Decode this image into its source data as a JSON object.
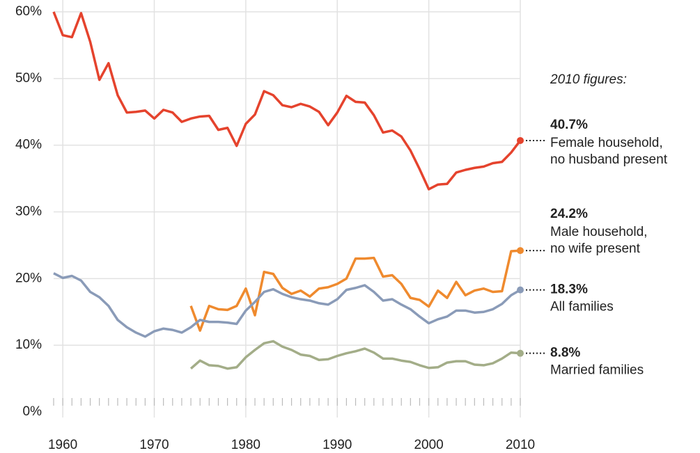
{
  "chart_data": {
    "type": "line",
    "annotation": "2010 figures:",
    "x": [
      1959,
      1960,
      1961,
      1962,
      1963,
      1964,
      1965,
      1966,
      1967,
      1968,
      1969,
      1970,
      1971,
      1972,
      1973,
      1974,
      1975,
      1976,
      1977,
      1978,
      1979,
      1980,
      1981,
      1982,
      1983,
      1984,
      1985,
      1986,
      1987,
      1988,
      1989,
      1990,
      1991,
      1992,
      1993,
      1994,
      1995,
      1996,
      1997,
      1998,
      1999,
      2000,
      2001,
      2002,
      2003,
      2004,
      2005,
      2006,
      2007,
      2008,
      2009,
      2010
    ],
    "xlim": [
      1959,
      2010
    ],
    "xticks": [
      1960,
      1970,
      1980,
      1990,
      2000,
      2010
    ],
    "ylim": [
      0,
      60
    ],
    "yticks": [
      {
        "value": 0,
        "label": "0%"
      },
      {
        "value": 10,
        "label": "10%"
      },
      {
        "value": 20,
        "label": "20%"
      },
      {
        "value": 30,
        "label": "30%"
      },
      {
        "value": 40,
        "label": "40%"
      },
      {
        "value": 50,
        "label": "50%"
      },
      {
        "value": 60,
        "label": "60%"
      }
    ],
    "grid": true,
    "series": [
      {
        "name": "Female household, no husband present",
        "color": "#e5432d",
        "values": [
          60,
          56.5,
          56.2,
          59.8,
          55.5,
          49.8,
          52.3,
          47.5,
          44.9,
          45.0,
          45.2,
          44.0,
          45.3,
          44.9,
          43.5,
          44.0,
          44.3,
          44.4,
          42.3,
          42.6,
          39.9,
          43.2,
          44.6,
          48.1,
          47.5,
          46.0,
          45.7,
          46.2,
          45.8,
          45.0,
          43.0,
          44.9,
          47.4,
          46.5,
          46.4,
          44.5,
          41.9,
          42.2,
          41.3,
          39.2,
          36.4,
          33.4,
          34.1,
          34.2,
          35.9,
          36.3,
          36.6,
          36.8,
          37.3,
          37.5,
          38.9,
          40.7
        ],
        "value_labels": [
          null,
          null,
          null,
          null,
          null,
          null,
          null,
          null,
          null,
          null,
          null,
          null,
          null,
          null,
          null,
          null,
          null,
          null,
          null,
          null,
          null,
          null,
          null,
          null,
          null,
          null,
          null,
          null,
          null,
          null,
          null,
          null,
          null,
          null,
          null,
          null,
          null,
          null,
          null,
          null,
          null,
          null,
          null,
          null,
          null,
          null,
          null,
          null,
          null,
          null,
          null,
          "40.7%"
        ]
      },
      {
        "name": "Male household, no wife present",
        "color": "#ef8a2e",
        "values": [
          null,
          null,
          null,
          null,
          null,
          null,
          null,
          null,
          null,
          null,
          null,
          null,
          null,
          null,
          null,
          15.9,
          12.2,
          15.9,
          15.4,
          15.3,
          15.9,
          18.5,
          14.5,
          21.0,
          20.7,
          18.6,
          17.7,
          18.2,
          17.3,
          18.5,
          18.7,
          19.2,
          20.0,
          23.0,
          23.0,
          23.1,
          20.3,
          20.5,
          19.2,
          17.1,
          16.8,
          15.8,
          18.2,
          17.1,
          19.5,
          17.5,
          18.2,
          18.5,
          18.0,
          18.1,
          24.1,
          24.2
        ],
        "value_labels": [
          null,
          null,
          null,
          null,
          null,
          null,
          null,
          null,
          null,
          null,
          null,
          null,
          null,
          null,
          null,
          null,
          null,
          null,
          null,
          null,
          null,
          null,
          null,
          null,
          null,
          null,
          null,
          null,
          null,
          null,
          null,
          null,
          null,
          null,
          null,
          null,
          null,
          null,
          null,
          null,
          null,
          null,
          null,
          null,
          null,
          null,
          null,
          null,
          null,
          null,
          null,
          "24.2%"
        ]
      },
      {
        "name": "All families",
        "color": "#8a9bb8",
        "values": [
          20.8,
          20.1,
          20.4,
          19.7,
          18.0,
          17.2,
          15.9,
          13.8,
          12.7,
          11.9,
          11.3,
          12.1,
          12.5,
          12.3,
          11.9,
          12.7,
          13.8,
          13.5,
          13.5,
          13.4,
          13.2,
          15.2,
          16.5,
          18.0,
          18.4,
          17.7,
          17.2,
          16.9,
          16.7,
          16.3,
          16.1,
          16.9,
          18.3,
          18.6,
          19.0,
          18.0,
          16.7,
          16.9,
          16.1,
          15.4,
          14.3,
          13.3,
          13.9,
          14.3,
          15.2,
          15.2,
          14.9,
          15.0,
          15.4,
          16.2,
          17.5,
          18.3
        ],
        "value_labels": [
          null,
          null,
          null,
          null,
          null,
          null,
          null,
          null,
          null,
          null,
          null,
          null,
          null,
          null,
          null,
          null,
          null,
          null,
          null,
          null,
          null,
          null,
          null,
          null,
          null,
          null,
          null,
          null,
          null,
          null,
          null,
          null,
          null,
          null,
          null,
          null,
          null,
          null,
          null,
          null,
          null,
          null,
          null,
          null,
          null,
          null,
          null,
          null,
          null,
          null,
          null,
          "18.3%"
        ]
      },
      {
        "name": "Married families",
        "color": "#a3ad88",
        "values": [
          null,
          null,
          null,
          null,
          null,
          null,
          null,
          null,
          null,
          null,
          null,
          null,
          null,
          null,
          null,
          6.5,
          7.7,
          7.0,
          6.9,
          6.5,
          6.7,
          8.2,
          9.3,
          10.3,
          10.6,
          9.8,
          9.3,
          8.6,
          8.4,
          7.8,
          7.9,
          8.4,
          8.8,
          9.1,
          9.5,
          8.9,
          8.0,
          8.0,
          7.7,
          7.5,
          7.0,
          6.6,
          6.7,
          7.4,
          7.6,
          7.6,
          7.1,
          7.0,
          7.3,
          8.0,
          8.9,
          8.8
        ],
        "value_labels": [
          null,
          null,
          null,
          null,
          null,
          null,
          null,
          null,
          null,
          null,
          null,
          null,
          null,
          null,
          null,
          null,
          null,
          null,
          null,
          null,
          null,
          null,
          null,
          null,
          null,
          null,
          null,
          null,
          null,
          null,
          null,
          null,
          null,
          null,
          null,
          null,
          null,
          null,
          null,
          null,
          null,
          null,
          null,
          null,
          null,
          null,
          null,
          null,
          null,
          null,
          null,
          "8.8%"
        ]
      }
    ]
  }
}
